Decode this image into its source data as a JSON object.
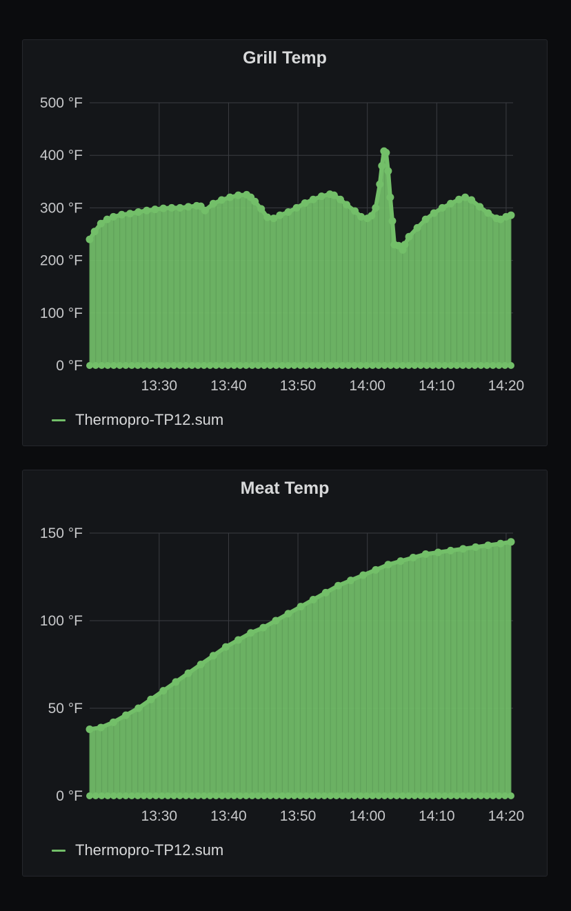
{
  "colors": {
    "background": "#0b0c0e",
    "panel": "#141619",
    "grid": "#3b3d42",
    "series": "#73bf69"
  },
  "chart_data": [
    {
      "type": "area",
      "title": "Grill Temp",
      "legend": {
        "position": "bottom-left"
      },
      "grid": true,
      "xlim": [
        13.333,
        14.35
      ],
      "ylim": [
        0,
        500
      ],
      "x_ticks": [
        {
          "v": 13.5,
          "label": "13:30"
        },
        {
          "v": 13.6667,
          "label": "13:40"
        },
        {
          "v": 13.8333,
          "label": "13:50"
        },
        {
          "v": 14.0,
          "label": "14:00"
        },
        {
          "v": 14.1667,
          "label": "14:10"
        },
        {
          "v": 14.3333,
          "label": "14:20"
        }
      ],
      "y_ticks": [
        {
          "v": 0,
          "label": "0 °F"
        },
        {
          "v": 100,
          "label": "100 °F"
        },
        {
          "v": 200,
          "label": "200 °F"
        },
        {
          "v": 300,
          "label": "300 °F"
        },
        {
          "v": 400,
          "label": "400 °F"
        },
        {
          "v": 500,
          "label": "500 °F"
        }
      ],
      "series": [
        {
          "name": "Thermopro-TP12.sum",
          "color": "#73bf69",
          "points": [
            [
              13.333,
              240
            ],
            [
              13.345,
              255
            ],
            [
              13.36,
              270
            ],
            [
              13.375,
              278
            ],
            [
              13.39,
              283
            ],
            [
              13.41,
              287
            ],
            [
              13.43,
              289
            ],
            [
              13.45,
              292
            ],
            [
              13.47,
              295
            ],
            [
              13.49,
              297
            ],
            [
              13.51,
              299
            ],
            [
              13.53,
              300
            ],
            [
              13.55,
              300
            ],
            [
              13.57,
              302
            ],
            [
              13.59,
              304
            ],
            [
              13.6,
              303
            ],
            [
              13.61,
              295
            ],
            [
              13.63,
              308
            ],
            [
              13.65,
              315
            ],
            [
              13.67,
              320
            ],
            [
              13.69,
              324
            ],
            [
              13.71,
              325
            ],
            [
              13.72,
              320
            ],
            [
              13.73,
              312
            ],
            [
              13.745,
              298
            ],
            [
              13.76,
              282
            ],
            [
              13.775,
              280
            ],
            [
              13.79,
              286
            ],
            [
              13.81,
              292
            ],
            [
              13.83,
              300
            ],
            [
              13.85,
              309
            ],
            [
              13.87,
              316
            ],
            [
              13.89,
              322
            ],
            [
              13.91,
              326
            ],
            [
              13.92,
              324
            ],
            [
              13.935,
              316
            ],
            [
              13.95,
              306
            ],
            [
              13.97,
              294
            ],
            [
              13.985,
              283
            ],
            [
              14.0,
              280
            ],
            [
              14.01,
              285
            ],
            [
              14.02,
              300
            ],
            [
              14.03,
              345
            ],
            [
              14.035,
              380
            ],
            [
              14.04,
              408
            ],
            [
              14.045,
              405
            ],
            [
              14.05,
              370
            ],
            [
              14.055,
              320
            ],
            [
              14.06,
              275
            ],
            [
              14.065,
              230
            ],
            [
              14.075,
              228
            ],
            [
              14.085,
              220
            ],
            [
              14.09,
              230
            ],
            [
              14.1,
              245
            ],
            [
              14.12,
              262
            ],
            [
              14.14,
              278
            ],
            [
              14.16,
              290
            ],
            [
              14.18,
              300
            ],
            [
              14.2,
              308
            ],
            [
              14.22,
              316
            ],
            [
              14.235,
              320
            ],
            [
              14.25,
              315
            ],
            [
              14.27,
              302
            ],
            [
              14.29,
              290
            ],
            [
              14.31,
              280
            ],
            [
              14.32,
              278
            ],
            [
              14.333,
              283
            ],
            [
              14.345,
              286
            ]
          ]
        }
      ]
    },
    {
      "type": "area",
      "title": "Meat Temp",
      "legend": {
        "position": "bottom-left"
      },
      "grid": true,
      "xlim": [
        13.333,
        14.35
      ],
      "ylim": [
        0,
        150
      ],
      "x_ticks": [
        {
          "v": 13.5,
          "label": "13:30"
        },
        {
          "v": 13.6667,
          "label": "13:40"
        },
        {
          "v": 13.8333,
          "label": "13:50"
        },
        {
          "v": 14.0,
          "label": "14:00"
        },
        {
          "v": 14.1667,
          "label": "14:10"
        },
        {
          "v": 14.3333,
          "label": "14:20"
        }
      ],
      "y_ticks": [
        {
          "v": 0,
          "label": "0 °F"
        },
        {
          "v": 50,
          "label": "50 °F"
        },
        {
          "v": 100,
          "label": "100 °F"
        },
        {
          "v": 150,
          "label": "150 °F"
        }
      ],
      "series": [
        {
          "name": "Thermopro-TP12.sum",
          "color": "#73bf69",
          "points": [
            [
              13.333,
              38
            ],
            [
              13.36,
              39
            ],
            [
              13.39,
              42
            ],
            [
              13.42,
              46
            ],
            [
              13.45,
              50
            ],
            [
              13.48,
              55
            ],
            [
              13.51,
              60
            ],
            [
              13.54,
              65
            ],
            [
              13.57,
              70
            ],
            [
              13.6,
              75
            ],
            [
              13.63,
              80
            ],
            [
              13.66,
              85
            ],
            [
              13.69,
              89
            ],
            [
              13.72,
              93
            ],
            [
              13.75,
              96
            ],
            [
              13.78,
              100
            ],
            [
              13.81,
              104
            ],
            [
              13.84,
              108
            ],
            [
              13.87,
              112
            ],
            [
              13.9,
              116
            ],
            [
              13.93,
              120
            ],
            [
              13.96,
              123
            ],
            [
              13.99,
              126
            ],
            [
              14.02,
              129
            ],
            [
              14.05,
              132
            ],
            [
              14.08,
              134
            ],
            [
              14.11,
              136
            ],
            [
              14.14,
              138
            ],
            [
              14.17,
              139
            ],
            [
              14.2,
              140
            ],
            [
              14.23,
              141
            ],
            [
              14.26,
              142
            ],
            [
              14.29,
              143
            ],
            [
              14.32,
              144
            ],
            [
              14.345,
              145
            ]
          ]
        }
      ]
    }
  ]
}
